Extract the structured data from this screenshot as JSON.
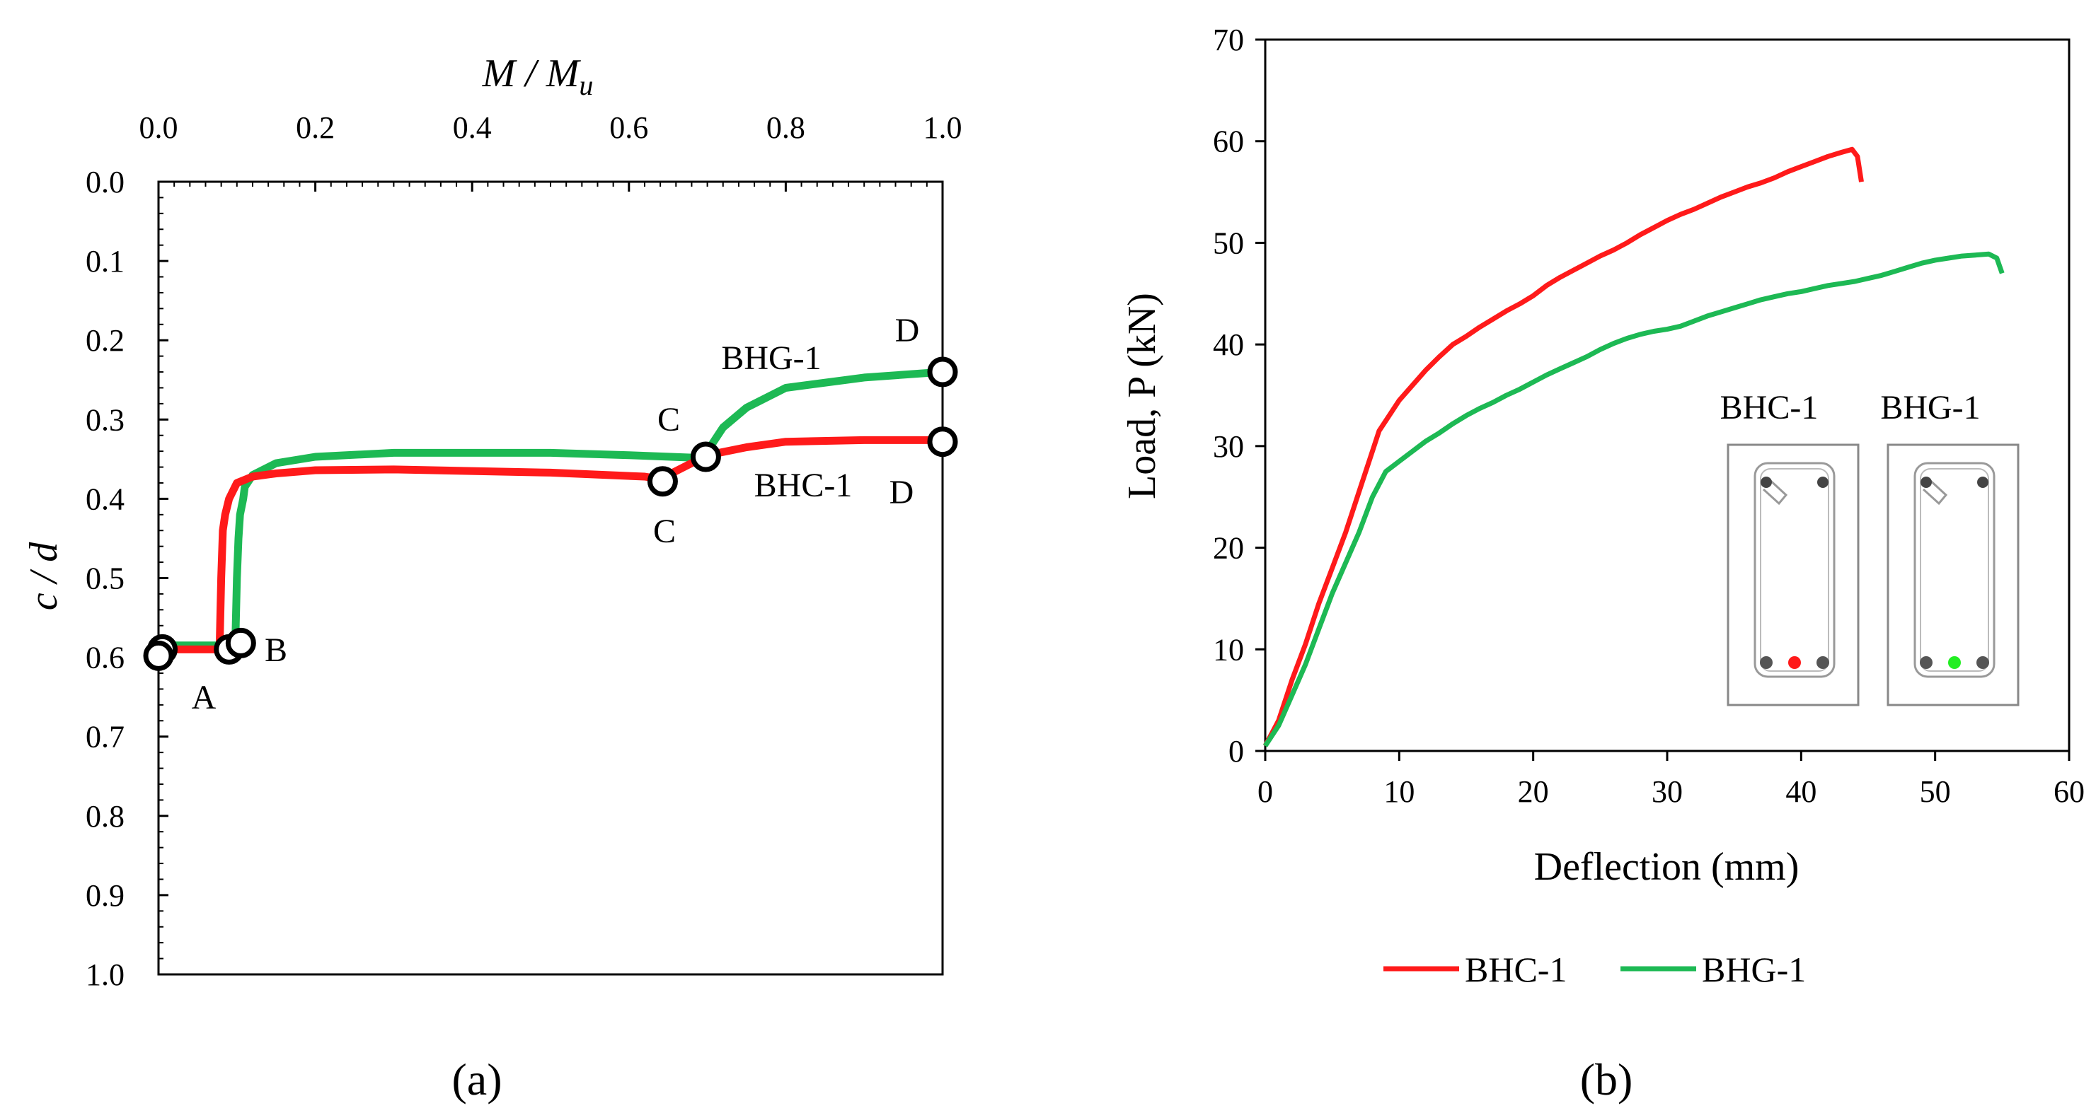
{
  "chart_data": [
    {
      "panel_label": "(a)",
      "type": "line",
      "xlabel": "M / M",
      "xlabel_sub": "u",
      "ylabel": "c / d",
      "xlim": [
        0,
        1
      ],
      "ylim": [
        0,
        1
      ],
      "y_inverted": true,
      "grid": false,
      "x_tick_values": [
        0,
        0.2,
        0.4,
        0.6,
        0.8,
        1.0
      ],
      "x_tick_labels": [
        "0.0",
        "0.2",
        "0.4",
        "0.6",
        "0.8",
        "1.0"
      ],
      "y_tick_values": [
        0,
        0.1,
        0.2,
        0.3,
        0.4,
        0.5,
        0.6,
        0.7,
        0.8,
        0.9,
        1.0
      ],
      "y_tick_labels": [
        "0.0",
        "0.1",
        "0.2",
        "0.3",
        "0.4",
        "0.5",
        "0.6",
        "0.7",
        "0.8",
        "0.9",
        "1.0"
      ],
      "series": [
        {
          "name": "BHC-1",
          "color": "#ff1a1a",
          "x": [
            0.0,
            0.04,
            0.07,
            0.075,
            0.078,
            0.08,
            0.082,
            0.085,
            0.09,
            0.1,
            0.12,
            0.15,
            0.2,
            0.3,
            0.5,
            0.62,
            0.64,
            0.66,
            0.7,
            0.75,
            0.8,
            0.9,
            1.0
          ],
          "y": [
            0.59,
            0.59,
            0.59,
            0.59,
            0.585,
            0.5,
            0.44,
            0.42,
            0.4,
            0.38,
            0.372,
            0.368,
            0.364,
            0.363,
            0.367,
            0.372,
            0.375,
            0.365,
            0.345,
            0.335,
            0.328,
            0.326,
            0.326
          ]
        },
        {
          "name": "BHG-1",
          "color": "#1db954",
          "x": [
            0.0,
            0.05,
            0.09,
            0.095,
            0.098,
            0.1,
            0.102,
            0.104,
            0.108,
            0.11,
            0.12,
            0.15,
            0.2,
            0.3,
            0.5,
            0.6,
            0.68,
            0.7,
            0.72,
            0.75,
            0.8,
            0.9,
            1.0
          ],
          "y": [
            0.585,
            0.585,
            0.585,
            0.585,
            0.58,
            0.5,
            0.45,
            0.42,
            0.4,
            0.385,
            0.37,
            0.355,
            0.347,
            0.342,
            0.342,
            0.345,
            0.348,
            0.34,
            0.31,
            0.285,
            0.26,
            0.247,
            0.24
          ]
        }
      ],
      "markers": [
        {
          "label": "A",
          "x": 0.005,
          "y": 0.59
        },
        {
          "label": "A",
          "x": 0.0,
          "y": 0.598
        },
        {
          "label": "",
          "x": 0.09,
          "y": 0.59
        },
        {
          "label": "B",
          "x": 0.105,
          "y": 0.582
        },
        {
          "label": "C",
          "x": 0.643,
          "y": 0.378
        },
        {
          "label": "C",
          "x": 0.698,
          "y": 0.347
        },
        {
          "label": "D",
          "x": 1.0,
          "y": 0.24
        },
        {
          "label": "D",
          "x": 1.0,
          "y": 0.328
        }
      ],
      "annotations": [
        {
          "text": "A"
        },
        {
          "text": "B"
        },
        {
          "text": "C"
        },
        {
          "text": "C"
        },
        {
          "text": "D"
        },
        {
          "text": "D"
        },
        {
          "text": "BHG-1"
        },
        {
          "text": "BHC-1"
        }
      ]
    },
    {
      "panel_label": "(b)",
      "type": "line",
      "xlabel": "Deflection (mm)",
      "ylabel": "Load,  P (kN)",
      "xlim": [
        0,
        60
      ],
      "ylim": [
        0,
        70
      ],
      "grid": false,
      "x_tick_values": [
        0,
        10,
        20,
        30,
        40,
        50,
        60
      ],
      "x_tick_labels": [
        "0",
        "10",
        "20",
        "30",
        "40",
        "50",
        "60"
      ],
      "y_tick_values": [
        0,
        10,
        20,
        30,
        40,
        50,
        60,
        70
      ],
      "y_tick_labels": [
        "0",
        "10",
        "20",
        "30",
        "40",
        "50",
        "60",
        "70"
      ],
      "legend_position": "bottom",
      "series": [
        {
          "name": "BHC-1",
          "color": "#ff1a1a",
          "x": [
            0,
            1,
            2,
            3,
            4,
            5,
            6,
            7,
            8,
            8.5,
            9,
            10,
            11,
            12,
            13,
            14,
            15,
            16,
            17,
            18,
            19,
            20,
            21,
            22,
            23,
            24,
            25,
            26,
            27,
            28,
            29,
            30,
            31,
            32,
            33,
            34,
            35,
            36,
            37,
            38,
            39,
            40,
            41,
            42,
            43,
            43.8,
            44.2,
            44.5
          ],
          "y": [
            0.5,
            3,
            7,
            10.5,
            14.5,
            18,
            21.5,
            25.5,
            29.5,
            31.5,
            32.5,
            34.5,
            36,
            37.5,
            38.8,
            40,
            40.8,
            41.7,
            42.5,
            43.3,
            44,
            44.8,
            45.8,
            46.6,
            47.3,
            48,
            48.7,
            49.3,
            50,
            50.8,
            51.5,
            52.2,
            52.8,
            53.3,
            53.9,
            54.5,
            55,
            55.5,
            55.9,
            56.4,
            57,
            57.5,
            58,
            58.5,
            58.9,
            59.2,
            58.5,
            56
          ]
        },
        {
          "name": "BHG-1",
          "color": "#1db954",
          "x": [
            0,
            1,
            2,
            3,
            4,
            5,
            6,
            7,
            8,
            9,
            10,
            11,
            12,
            13,
            14,
            15,
            16,
            17,
            18,
            19,
            20,
            21,
            22,
            23,
            24,
            25,
            26,
            27,
            28,
            29,
            30,
            31,
            32,
            33,
            34,
            35,
            36,
            37,
            38,
            39,
            40,
            41,
            42,
            43,
            44,
            45,
            46,
            47,
            48,
            49,
            50,
            51,
            52,
            53,
            54,
            54.6,
            55
          ],
          "y": [
            0.5,
            2.5,
            5.5,
            8.5,
            12,
            15.5,
            18.5,
            21.5,
            25,
            27.5,
            28.5,
            29.5,
            30.5,
            31.3,
            32.2,
            33,
            33.7,
            34.3,
            35,
            35.6,
            36.3,
            37,
            37.6,
            38.2,
            38.8,
            39.5,
            40.1,
            40.6,
            41,
            41.3,
            41.5,
            41.8,
            42.3,
            42.8,
            43.2,
            43.6,
            44,
            44.4,
            44.7,
            45,
            45.2,
            45.5,
            45.8,
            46,
            46.2,
            46.5,
            46.8,
            47.2,
            47.6,
            48,
            48.3,
            48.5,
            48.7,
            48.8,
            48.9,
            48.5,
            47
          ]
        }
      ],
      "inset": {
        "labels": [
          "BHC-1",
          "BHG-1"
        ],
        "highlight_colors": [
          "#ff1a1a",
          "#22ee22"
        ]
      }
    }
  ]
}
